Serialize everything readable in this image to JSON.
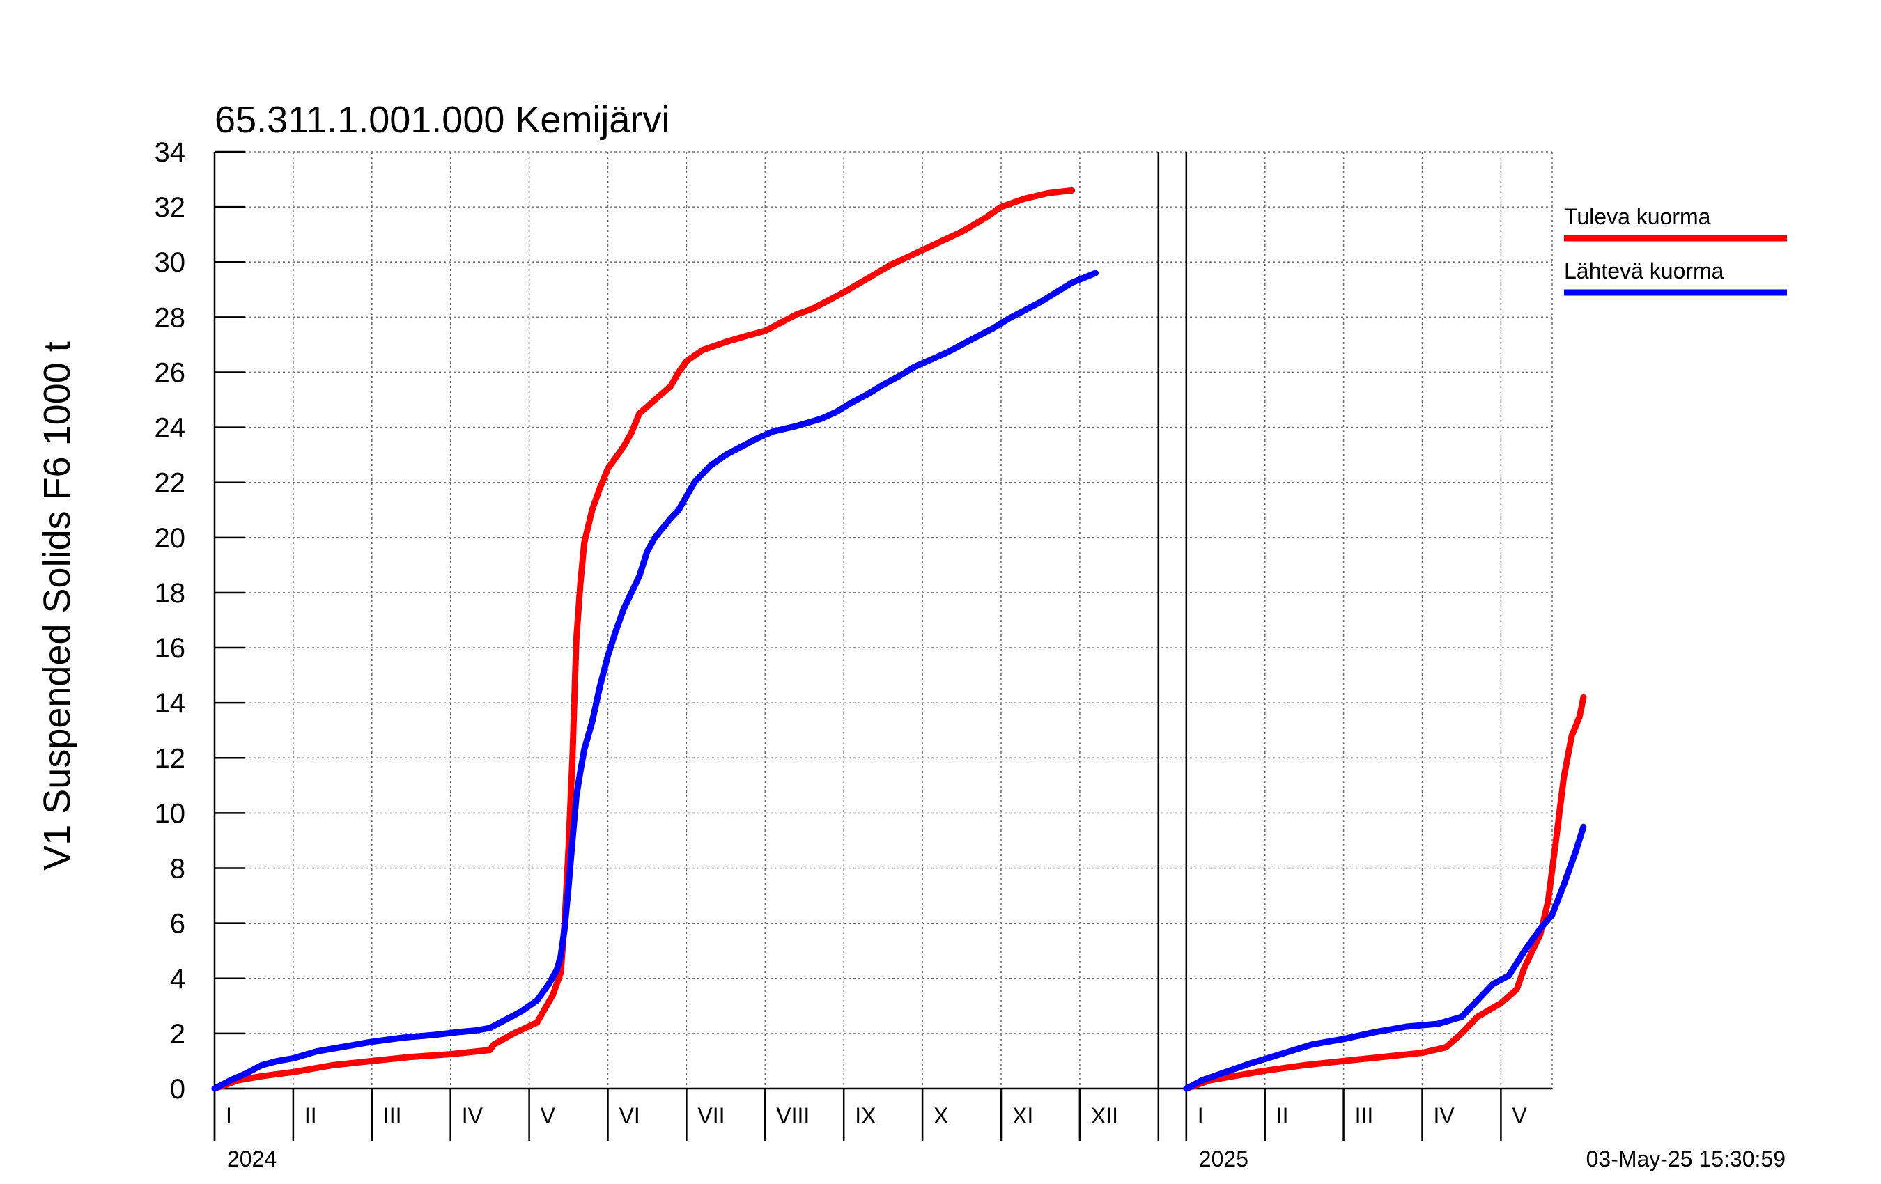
{
  "chart_data": {
    "type": "line",
    "title": "65.311.1.001.000 Kemijärvi",
    "ylabel": "V1 Suspended Solids F6 1000 t",
    "ylim": [
      0,
      34
    ],
    "yticks": [
      0,
      2,
      4,
      6,
      8,
      10,
      12,
      14,
      16,
      18,
      20,
      22,
      24,
      26,
      28,
      30,
      32,
      34
    ],
    "timestamp": "03-May-25 15:30:59",
    "years": [
      {
        "label": "2024",
        "months": [
          "I",
          "II",
          "III",
          "IV",
          "V",
          "VI",
          "VII",
          "VIII",
          "IX",
          "X",
          "XI",
          "XII"
        ]
      },
      {
        "label": "2025",
        "months": [
          "I",
          "II",
          "III",
          "IV",
          "V"
        ]
      }
    ],
    "x_unit": "months since 1 Jan 2024",
    "series": [
      {
        "name": "Tuleva kuorma",
        "color": "#ff0000",
        "segments": [
          [
            [
              0,
              0
            ],
            [
              0.3,
              0.3
            ],
            [
              0.6,
              0.45
            ],
            [
              1.0,
              0.6
            ],
            [
              1.5,
              0.85
            ],
            [
              2.0,
              1.0
            ],
            [
              2.5,
              1.15
            ],
            [
              3.0,
              1.25
            ],
            [
              3.5,
              1.4
            ],
            [
              3.55,
              1.6
            ],
            [
              3.8,
              2.0
            ],
            [
              4.1,
              2.4
            ],
            [
              4.3,
              3.4
            ],
            [
              4.4,
              4.2
            ],
            [
              4.45,
              6.0
            ],
            [
              4.5,
              8.7
            ],
            [
              4.55,
              12.0
            ],
            [
              4.6,
              16.3
            ],
            [
              4.65,
              18.3
            ],
            [
              4.7,
              19.8
            ],
            [
              4.8,
              21.0
            ],
            [
              4.9,
              21.8
            ],
            [
              5.0,
              22.5
            ],
            [
              5.2,
              23.3
            ],
            [
              5.3,
              23.8
            ],
            [
              5.4,
              24.5
            ],
            [
              5.6,
              25.0
            ],
            [
              5.8,
              25.5
            ],
            [
              5.9,
              26.0
            ],
            [
              6.0,
              26.4
            ],
            [
              6.2,
              26.8
            ],
            [
              6.5,
              27.1
            ],
            [
              6.8,
              27.35
            ],
            [
              7.0,
              27.5
            ],
            [
              7.2,
              27.8
            ],
            [
              7.4,
              28.1
            ],
            [
              7.6,
              28.3
            ],
            [
              7.8,
              28.6
            ],
            [
              8.0,
              28.9
            ],
            [
              8.3,
              29.4
            ],
            [
              8.6,
              29.9
            ],
            [
              8.9,
              30.3
            ],
            [
              9.2,
              30.7
            ],
            [
              9.5,
              31.1
            ],
            [
              9.8,
              31.6
            ],
            [
              10.0,
              32.0
            ],
            [
              10.3,
              32.3
            ],
            [
              10.6,
              32.5
            ],
            [
              10.9,
              32.6
            ]
          ]
        ]
      },
      {
        "name": "Lähtevä kuorma",
        "color": "#0000ff",
        "segments": [
          [
            [
              0,
              0
            ],
            [
              0.2,
              0.3
            ],
            [
              0.4,
              0.55
            ],
            [
              0.6,
              0.85
            ],
            [
              0.8,
              1.0
            ],
            [
              1.0,
              1.1
            ],
            [
              1.3,
              1.35
            ],
            [
              1.6,
              1.5
            ],
            [
              2.0,
              1.7
            ],
            [
              2.4,
              1.85
            ],
            [
              2.8,
              1.95
            ],
            [
              3.1,
              2.05
            ],
            [
              3.3,
              2.1
            ],
            [
              3.5,
              2.2
            ],
            [
              3.7,
              2.5
            ],
            [
              3.9,
              2.8
            ],
            [
              4.1,
              3.2
            ],
            [
              4.25,
              3.8
            ],
            [
              4.35,
              4.3
            ],
            [
              4.4,
              4.8
            ],
            [
              4.45,
              5.8
            ],
            [
              4.5,
              7.3
            ],
            [
              4.55,
              9.0
            ],
            [
              4.6,
              10.6
            ],
            [
              4.65,
              11.5
            ],
            [
              4.7,
              12.3
            ],
            [
              4.8,
              13.3
            ],
            [
              4.9,
              14.6
            ],
            [
              5.0,
              15.7
            ],
            [
              5.1,
              16.6
            ],
            [
              5.2,
              17.4
            ],
            [
              5.3,
              18.0
            ],
            [
              5.4,
              18.6
            ],
            [
              5.5,
              19.5
            ],
            [
              5.6,
              20.0
            ],
            [
              5.8,
              20.7
            ],
            [
              5.9,
              21.0
            ],
            [
              6.0,
              21.5
            ],
            [
              6.1,
              22.0
            ],
            [
              6.3,
              22.6
            ],
            [
              6.5,
              23.0
            ],
            [
              6.7,
              23.3
            ],
            [
              6.9,
              23.6
            ],
            [
              7.1,
              23.85
            ],
            [
              7.4,
              24.05
            ],
            [
              7.7,
              24.3
            ],
            [
              7.9,
              24.55
            ],
            [
              8.1,
              24.9
            ],
            [
              8.3,
              25.2
            ],
            [
              8.5,
              25.55
            ],
            [
              8.7,
              25.85
            ],
            [
              8.9,
              26.2
            ],
            [
              9.1,
              26.45
            ],
            [
              9.3,
              26.7
            ],
            [
              9.5,
              27.0
            ],
            [
              9.7,
              27.3
            ],
            [
              9.9,
              27.6
            ],
            [
              10.1,
              27.95
            ],
            [
              10.3,
              28.25
            ],
            [
              10.5,
              28.55
            ],
            [
              10.7,
              28.9
            ],
            [
              10.9,
              29.25
            ],
            [
              11.2,
              29.6
            ]
          ]
        ]
      }
    ]
  },
  "legend": {
    "items": [
      {
        "label": "Tuleva kuorma",
        "color": "#ff0000"
      },
      {
        "label": "Lähtevä kuorma",
        "color": "#0000ff"
      }
    ]
  }
}
